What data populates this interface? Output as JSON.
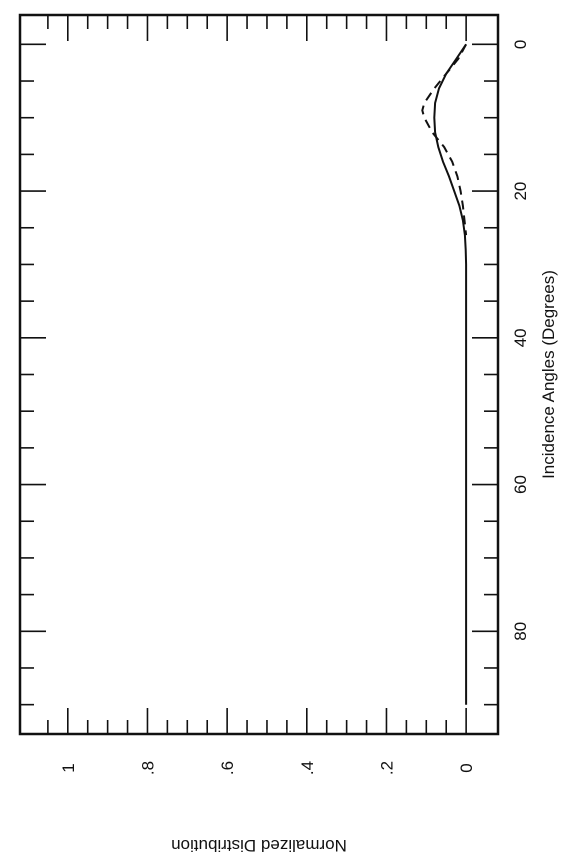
{
  "chart_data": {
    "type": "line",
    "title": "",
    "xlabel": "Incidence Angles (Degrees)",
    "ylabel": "Normalized Distribution",
    "xlim": [
      -4,
      94
    ],
    "ylim": [
      -0.08,
      1.12
    ],
    "x_ticks": [
      0,
      20,
      40,
      60,
      80
    ],
    "x_tick_labels": [
      "0",
      "20",
      "40",
      "60",
      "80"
    ],
    "y_ticks": [
      0,
      0.2,
      0.4,
      0.6,
      0.8,
      1
    ],
    "y_tick_labels": [
      "0",
      ".2",
      ".4",
      ".6",
      ".8",
      "1"
    ],
    "grid": false,
    "legend": "none",
    "orientation": "rotated 90° clockwise (plot displayed sideways)",
    "series": [
      {
        "style": "solid",
        "x": [
          0,
          2,
          4,
          6,
          8,
          10,
          12,
          14,
          16,
          18,
          20,
          22,
          24,
          26,
          28,
          30,
          40,
          60,
          90
        ],
        "values": [
          0.0,
          0.025,
          0.05,
          0.068,
          0.078,
          0.08,
          0.078,
          0.07,
          0.058,
          0.043,
          0.03,
          0.017,
          0.008,
          0.003,
          0.001,
          0.0,
          0.0,
          0.0,
          0.0
        ]
      },
      {
        "style": "dashed",
        "x": [
          0,
          2,
          4,
          6,
          8,
          9,
          10,
          12,
          14,
          16,
          18,
          20,
          22,
          24,
          26
        ],
        "values": [
          0.0,
          0.02,
          0.05,
          0.08,
          0.105,
          0.11,
          0.105,
          0.085,
          0.055,
          0.035,
          0.022,
          0.014,
          0.008,
          0.004,
          0.0
        ]
      }
    ]
  }
}
